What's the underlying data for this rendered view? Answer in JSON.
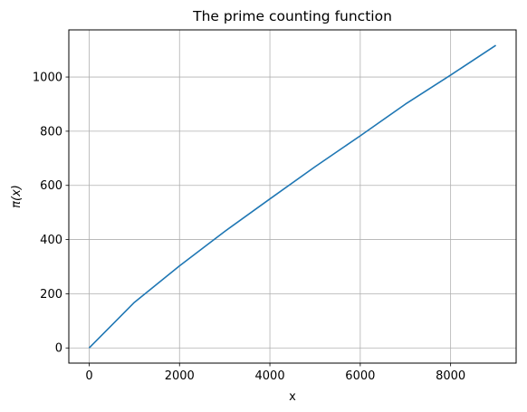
{
  "chart_data": {
    "type": "line",
    "title": "The prime counting function",
    "xlabel": "x",
    "ylabel": "π(x)",
    "xlim": [
      -450,
      9450
    ],
    "ylim": [
      -56,
      1174
    ],
    "xticks": [
      0,
      2000,
      4000,
      6000,
      8000
    ],
    "yticks": [
      0,
      200,
      400,
      600,
      800,
      1000
    ],
    "grid": true,
    "line_color": "#1f77b4",
    "series": [
      {
        "x": [
          0,
          1000,
          2000,
          3000,
          4000,
          5000,
          6000,
          7000,
          8000,
          9000
        ],
        "y": [
          0,
          168,
          303,
          430,
          550,
          669,
          783,
          900,
          1007,
          1117
        ]
      }
    ]
  }
}
